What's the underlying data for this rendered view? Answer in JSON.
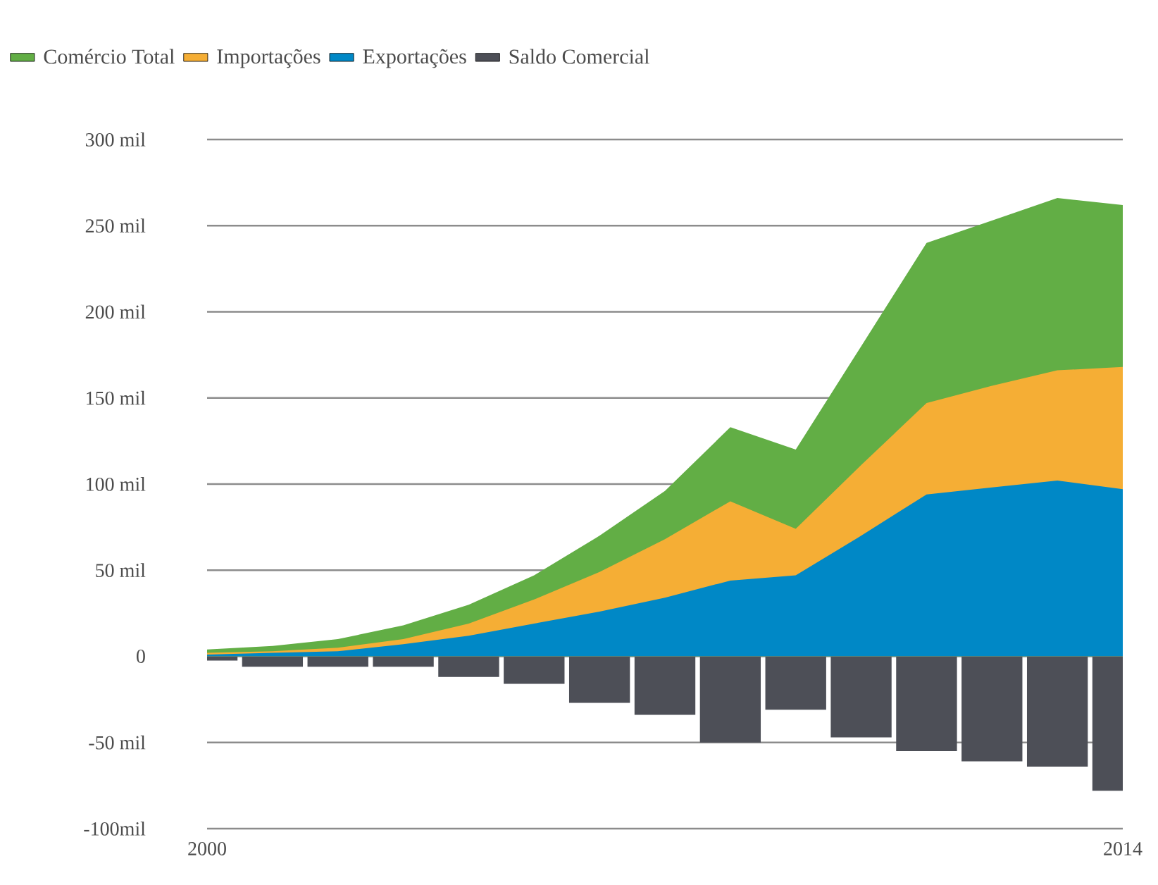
{
  "chart_data": {
    "type": "area",
    "x": [
      2000,
      2001,
      2002,
      2003,
      2004,
      2005,
      2006,
      2007,
      2008,
      2009,
      2010,
      2011,
      2012,
      2013,
      2014
    ],
    "series": [
      {
        "name": "Comércio Total",
        "color": "#62ae45",
        "values": [
          4,
          6,
          10,
          18,
          30,
          47,
          70,
          96,
          133,
          120,
          180,
          240,
          253,
          266,
          262
        ]
      },
      {
        "name": "Importações",
        "color": "#f5ae35",
        "values": [
          2,
          3,
          5,
          10,
          19,
          33,
          49,
          68,
          90,
          74,
          111,
          147,
          157,
          166,
          168
        ]
      },
      {
        "name": "Exportações",
        "color": "#0088c6",
        "values": [
          1,
          2,
          3,
          7,
          12,
          19,
          26,
          34,
          44,
          47,
          70,
          94,
          98,
          102,
          97
        ]
      },
      {
        "name": "Saldo Comercial",
        "color": "#4d4f57",
        "type": "bar",
        "values": [
          -2.5,
          -6,
          -6,
          -6,
          -12,
          -16,
          -27,
          -34,
          -50,
          -31,
          -47,
          -55,
          -61,
          -64,
          -78
        ]
      }
    ],
    "xlim": [
      2000,
      2014
    ],
    "xticks": [
      2000,
      2014
    ],
    "ylim": [
      -100,
      300
    ],
    "yticks": [
      {
        "value": -100,
        "label": "-100mil"
      },
      {
        "value": -50,
        "label": "-50 mil"
      },
      0,
      {
        "value": 50,
        "label": "50 mil"
      },
      {
        "value": 100,
        "label": "100 mil"
      },
      {
        "value": 150,
        "label": "150 mil"
      },
      {
        "value": 200,
        "label": "200 mil"
      },
      {
        "value": 250,
        "label": "250 mil"
      },
      {
        "value": 300,
        "label": "300 mil"
      }
    ],
    "grid": "y",
    "legend": "top left"
  }
}
